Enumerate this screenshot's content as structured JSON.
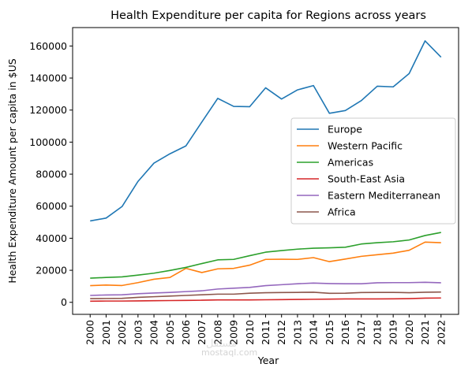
{
  "chart_data": {
    "type": "line",
    "title": "Health Expenditure per capita for Regions across years",
    "xlabel": "Year",
    "ylabel": "Health Expenditure Amount per capita in $US",
    "x": [
      2000,
      2001,
      2002,
      2003,
      2004,
      2005,
      2006,
      2007,
      2008,
      2009,
      2010,
      2011,
      2012,
      2013,
      2014,
      2015,
      2016,
      2017,
      2018,
      2019,
      2020,
      2021,
      2022
    ],
    "xtick_labels": [
      "2000",
      "2001",
      "2002",
      "2003",
      "2004",
      "2005",
      "2006",
      "2007",
      "2008",
      "2009",
      "2010",
      "2011",
      "2012",
      "2013",
      "2014",
      "2015",
      "2016",
      "2017",
      "2018",
      "2019",
      "2020",
      "2021",
      "2022"
    ],
    "ylim": [
      -7500,
      171500
    ],
    "yticks": [
      0,
      20000,
      40000,
      60000,
      80000,
      100000,
      120000,
      140000,
      160000
    ],
    "ytick_labels": [
      "0",
      "20000",
      "40000",
      "60000",
      "80000",
      "100000",
      "120000",
      "140000",
      "160000"
    ],
    "grid": false,
    "legend_position": "center-right",
    "series": [
      {
        "name": "Europe",
        "color": "#1f77b4",
        "values": [
          50800,
          52600,
          59800,
          75500,
          86900,
          92700,
          97600,
          112500,
          127300,
          122300,
          122100,
          133900,
          126900,
          132600,
          135300,
          118000,
          119700,
          125900,
          134900,
          134500,
          142800,
          163200,
          153000
        ]
      },
      {
        "name": "Western Pacific",
        "color": "#ff7f0e",
        "values": [
          10400,
          10800,
          10500,
          12300,
          14400,
          15500,
          21200,
          18600,
          20900,
          21200,
          23200,
          26800,
          26900,
          26800,
          27900,
          25400,
          27000,
          28700,
          29700,
          30700,
          32500,
          37600,
          37200
        ]
      },
      {
        "name": "Americas",
        "color": "#2ca02c",
        "values": [
          15100,
          15500,
          15900,
          17000,
          18200,
          19900,
          21800,
          24200,
          26500,
          26800,
          29100,
          31300,
          32300,
          33200,
          33800,
          34000,
          34400,
          36400,
          37200,
          37800,
          38900,
          41700,
          43600
        ]
      },
      {
        "name": "South-East Asia",
        "color": "#d62728",
        "values": [
          700,
          800,
          800,
          900,
          1000,
          1100,
          1200,
          1300,
          1500,
          1500,
          1500,
          1600,
          1700,
          1800,
          1900,
          2000,
          2100,
          2100,
          2100,
          2200,
          2300,
          2600,
          2700
        ]
      },
      {
        "name": "Eastern Mediterranean",
        "color": "#9467bd",
        "values": [
          4300,
          4600,
          4700,
          5400,
          5800,
          6200,
          6700,
          7200,
          8300,
          8800,
          9300,
          10400,
          11000,
          11600,
          12000,
          11700,
          11600,
          11600,
          12200,
          12300,
          12300,
          12500,
          12200
        ]
      },
      {
        "name": "Africa",
        "color": "#8c564b",
        "values": [
          2300,
          2400,
          2500,
          3100,
          3500,
          3900,
          4300,
          4700,
          5100,
          5100,
          5700,
          6000,
          6100,
          6200,
          6300,
          5600,
          5700,
          6100,
          6200,
          6200,
          6000,
          6300,
          6400
        ]
      }
    ]
  },
  "watermark": {
    "latin": "mostaql.com",
    "arabic": "مستقل"
  }
}
